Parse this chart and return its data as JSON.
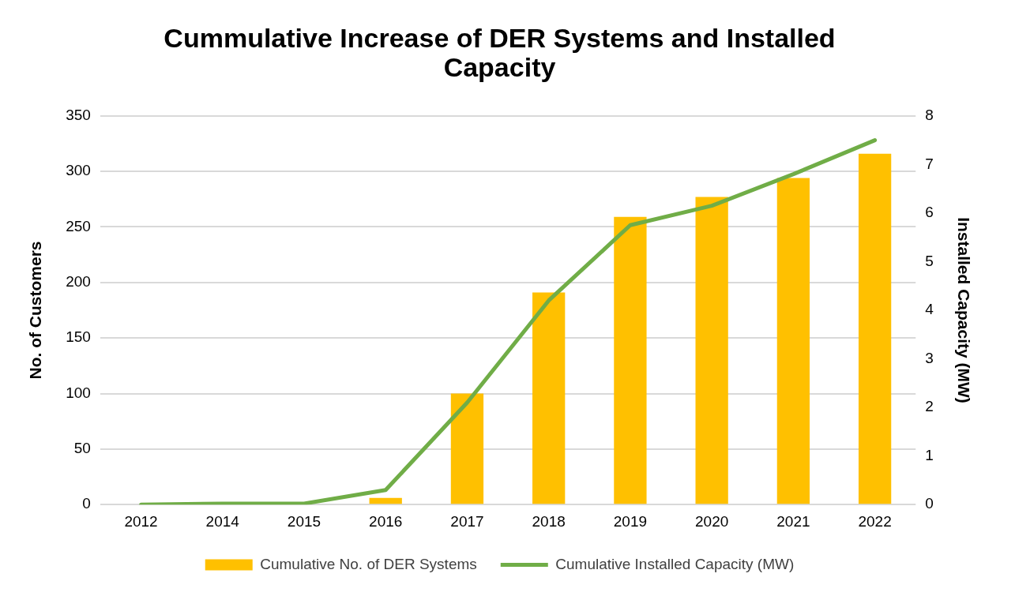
{
  "chart_data": {
    "type": "bar",
    "title": "Cummulative Increase of DER Systems and Installed Capacity",
    "ylabel": "No. of Customers",
    "y2label": "Installed Capacity (MW)",
    "categories": [
      "2012",
      "2014",
      "2015",
      "2016",
      "2017",
      "2018",
      "2019",
      "2020",
      "2021",
      "2022"
    ],
    "series": [
      {
        "name": "Cumulative No. of DER Systems",
        "color": "#ffc000",
        "values": [
          0,
          0,
          0,
          6,
          100,
          191,
          259,
          277,
          294,
          316
        ]
      },
      {
        "name": "Cumulative Installed Capacity (MW)",
        "type": "line",
        "axis": "y2",
        "color": "#70ad47",
        "values": [
          0,
          0.02,
          0.02,
          0.3,
          2.1,
          4.2,
          5.75,
          6.15,
          6.8,
          7.5
        ]
      }
    ],
    "ylim": [
      0,
      350
    ],
    "yticks": [
      0,
      50,
      100,
      150,
      200,
      250,
      300,
      350
    ],
    "y2lim": [
      0,
      8
    ],
    "y2ticks": [
      0,
      1,
      2,
      3,
      4,
      5,
      6,
      7,
      8
    ],
    "grid": "y",
    "legend": "bottom",
    "marker": "none",
    "line_style": "solid"
  }
}
